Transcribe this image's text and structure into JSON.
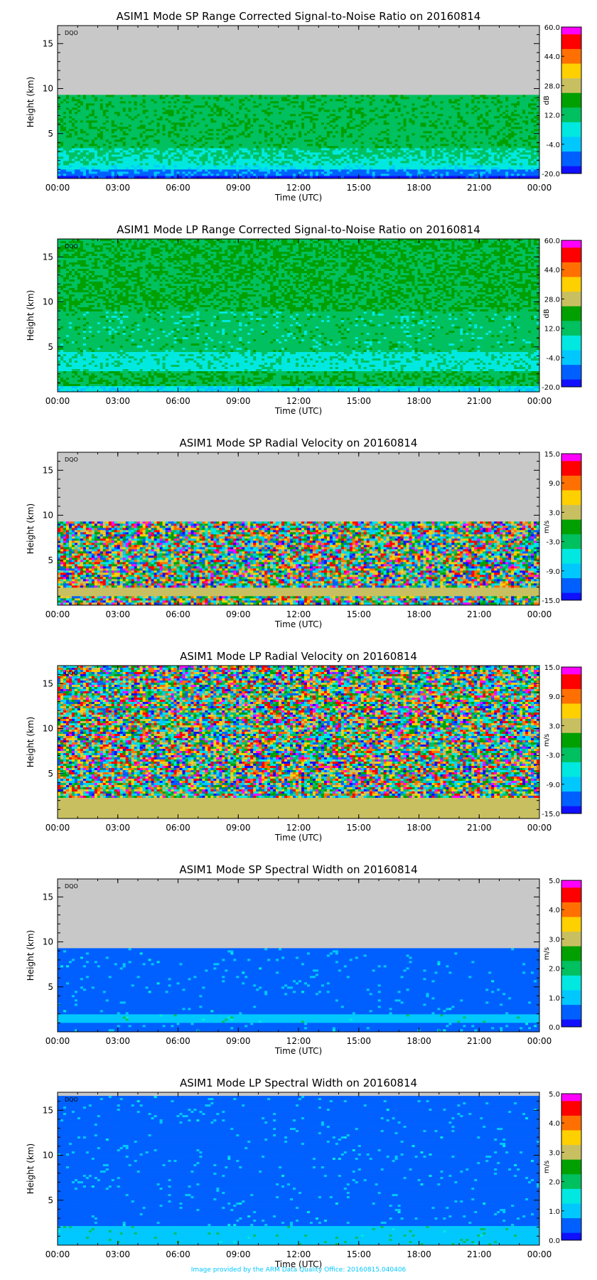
{
  "chart_data": [
    {
      "type": "heatmap",
      "title": "ASIM1 Mode SP Range Corrected Signal-to-Noise Ratio on 20160814",
      "xlabel": "Time (UTC)",
      "ylabel": "Height (km)",
      "x_ticks": [
        "00:00",
        "03:00",
        "06:00",
        "09:00",
        "12:00",
        "15:00",
        "18:00",
        "21:00",
        "00:00"
      ],
      "y_ticks": [
        5,
        10,
        15
      ],
      "ylim": [
        0,
        17
      ],
      "tag": "DQO",
      "unit": "dB",
      "colorbar_ticks": [
        "60.0",
        "44.0",
        "28.0",
        "12.0",
        "-4.0",
        "-20.0"
      ],
      "colorbar_range": [
        -20,
        60
      ],
      "data_top_km": 9.3,
      "regime": "snr_sp",
      "bands": [
        {
          "from_km": 0.0,
          "to_km": 0.35,
          "level": 0.03
        },
        {
          "from_km": 0.35,
          "to_km": 1.0,
          "level": 0.12
        },
        {
          "from_km": 1.0,
          "to_km": 1.7,
          "level": 0.28
        },
        {
          "from_km": 1.7,
          "to_km": 2.3,
          "level": 0.33
        },
        {
          "from_km": 2.3,
          "to_km": 3.5,
          "level": 0.36
        },
        {
          "from_km": 3.5,
          "to_km": 9.3,
          "level": 0.42
        }
      ]
    },
    {
      "type": "heatmap",
      "title": "ASIM1 Mode LP Range Corrected Signal-to-Noise Ratio on 20160814",
      "xlabel": "Time (UTC)",
      "ylabel": "Height (km)",
      "x_ticks": [
        "00:00",
        "03:00",
        "06:00",
        "09:00",
        "12:00",
        "15:00",
        "18:00",
        "21:00",
        "00:00"
      ],
      "y_ticks": [
        5,
        10,
        15
      ],
      "ylim": [
        0,
        17
      ],
      "tag": "DQO",
      "unit": "dB",
      "colorbar_ticks": [
        "60.0",
        "44.0",
        "28.0",
        "12.0",
        "-4.0",
        "-20.0"
      ],
      "colorbar_range": [
        -20,
        60
      ],
      "data_top_km": 17.0,
      "regime": "snr_lp",
      "bands": [
        {
          "from_km": 0.0,
          "to_km": 0.8,
          "level": 0.26
        },
        {
          "from_km": 0.8,
          "to_km": 2.3,
          "level": 0.44
        },
        {
          "from_km": 2.3,
          "to_km": 4.5,
          "level": 0.32
        },
        {
          "from_km": 4.5,
          "to_km": 9.0,
          "level": 0.4
        },
        {
          "from_km": 9.0,
          "to_km": 17.0,
          "level": 0.45
        }
      ]
    },
    {
      "type": "heatmap",
      "title": "ASIM1 Mode SP Radial Velocity  on 20160814",
      "xlabel": "Time (UTC)",
      "ylabel": "Height (km)",
      "x_ticks": [
        "00:00",
        "03:00",
        "06:00",
        "09:00",
        "12:00",
        "15:00",
        "18:00",
        "21:00",
        "00:00"
      ],
      "y_ticks": [
        5,
        10,
        15
      ],
      "ylim": [
        0,
        17
      ],
      "tag": "DQO",
      "unit": "m/s",
      "colorbar_ticks": [
        "15.0",
        "9.0",
        "3.0",
        "-3.0",
        "-9.0",
        "-15.0"
      ],
      "colorbar_range": [
        -15,
        15
      ],
      "data_top_km": 9.3,
      "regime": "vel_sp",
      "bands": [
        {
          "from_km": 0.0,
          "to_km": 1.0,
          "level": 0.5
        },
        {
          "from_km": 1.0,
          "to_km": 2.0,
          "level": 0.52
        },
        {
          "from_km": 2.0,
          "to_km": 9.3,
          "level": 0.5
        }
      ]
    },
    {
      "type": "heatmap",
      "title": "ASIM1 Mode LP Radial Velocity  on 20160814",
      "xlabel": "Time (UTC)",
      "ylabel": "Height (km)",
      "x_ticks": [
        "00:00",
        "03:00",
        "06:00",
        "09:00",
        "12:00",
        "15:00",
        "18:00",
        "21:00",
        "00:00"
      ],
      "y_ticks": [
        5,
        10,
        15
      ],
      "ylim": [
        0,
        17
      ],
      "tag": "DQO",
      "unit": "m/s",
      "colorbar_ticks": [
        "15.0",
        "9.0",
        "3.0",
        "-3.0",
        "-9.0",
        "-15.0"
      ],
      "colorbar_range": [
        -15,
        15
      ],
      "data_top_km": 17.0,
      "regime": "vel_lp",
      "bands": [
        {
          "from_km": 0.0,
          "to_km": 2.3,
          "level": 0.52
        },
        {
          "from_km": 2.3,
          "to_km": 17.0,
          "level": 0.5
        }
      ]
    },
    {
      "type": "heatmap",
      "title": "ASIM1 Mode SP Spectral Width  on 20160814",
      "xlabel": "Time (UTC)",
      "ylabel": "Height (km)",
      "x_ticks": [
        "00:00",
        "03:00",
        "06:00",
        "09:00",
        "12:00",
        "15:00",
        "18:00",
        "21:00",
        "00:00"
      ],
      "y_ticks": [
        5,
        10,
        15
      ],
      "ylim": [
        0,
        17
      ],
      "tag": "DQO",
      "unit": "m/s",
      "colorbar_ticks": [
        "5.0",
        "4.0",
        "3.0",
        "2.0",
        "1.0",
        "0.0"
      ],
      "colorbar_range": [
        0,
        5
      ],
      "data_top_km": 9.3,
      "regime": "sw_sp",
      "bands": [
        {
          "from_km": 0.0,
          "to_km": 1.2,
          "level": 0.08
        },
        {
          "from_km": 1.2,
          "to_km": 2.0,
          "level": 0.2
        },
        {
          "from_km": 2.0,
          "to_km": 9.3,
          "level": 0.08
        }
      ]
    },
    {
      "type": "heatmap",
      "title": "ASIM1 Mode LP Spectral Width  on 20160814",
      "xlabel": "Time (UTC)",
      "ylabel": "Height (km)",
      "x_ticks": [
        "00:00",
        "03:00",
        "06:00",
        "09:00",
        "12:00",
        "15:00",
        "18:00",
        "21:00",
        "00:00"
      ],
      "y_ticks": [
        5,
        10,
        15
      ],
      "ylim": [
        0,
        17
      ],
      "tag": "DQO",
      "unit": "m/s",
      "colorbar_ticks": [
        "5.0",
        "4.0",
        "3.0",
        "2.0",
        "1.0",
        "0.0"
      ],
      "colorbar_range": [
        0,
        5
      ],
      "data_top_km": 16.6,
      "regime": "sw_lp",
      "bands": [
        {
          "from_km": 0.0,
          "to_km": 2.3,
          "level": 0.22
        },
        {
          "from_km": 2.3,
          "to_km": 16.6,
          "level": 0.08
        }
      ]
    }
  ],
  "colormap": [
    "#1010ff",
    "#0060ff",
    "#00c8ff",
    "#00e8e0",
    "#00c060",
    "#00a000",
    "#c8c060",
    "#ffd000",
    "#ff7000",
    "#ff0000",
    "#ff00ff"
  ],
  "no_data_color": "#c8c8c8",
  "footer": "Image provided by the ARM Data Quality Office: 20160815.040406"
}
